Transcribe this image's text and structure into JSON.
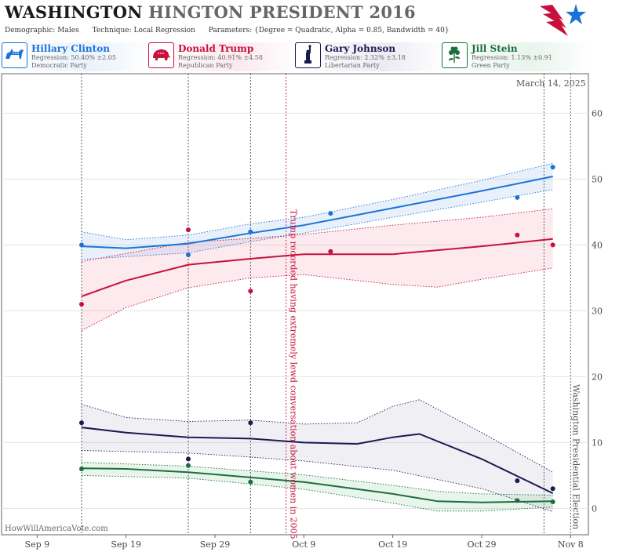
{
  "header": {
    "title_bold": "WASHINGTON",
    "title_rest": "HINGTON PRESIDENT 2016",
    "demographic": "Demographic: Males",
    "technique": "Technique: Local Regression",
    "parameters": "Parameters: {Degree = Quadratic, Alpha = 0.85, Bandwidth = 40}"
  },
  "candidates": [
    {
      "name": "Hillary Clinton",
      "regression": "Regression: 50.40% ±2.05",
      "party": "Democratic Party",
      "color": "#1a74d6",
      "icon": "donkey-icon"
    },
    {
      "name": "Donald Trump",
      "regression": "Regression: 40.91% ±4.58",
      "party": "Republican Party",
      "color": "#c8103c",
      "icon": "elephant-icon"
    },
    {
      "name": "Gary Johnson",
      "regression": "Regression: 2.32% ±3.18",
      "party": "Libertarian Party",
      "color": "#1b1a50",
      "icon": "statue-of-liberty-icon"
    },
    {
      "name": "Jill Stein",
      "regression": "Regression: 1.13% ±0.91",
      "party": "Green Party",
      "color": "#1b6e3c",
      "icon": "flower-icon"
    }
  ],
  "date_stamp": "March 14, 2025",
  "credit": "HowWillAmericaVote.com",
  "chart_data": {
    "type": "line",
    "x_tick_labels": [
      "Sep 9",
      "Sep 19",
      "Sep 29",
      "Oct 9",
      "Oct 19",
      "Oct 29",
      "Nov 8"
    ],
    "y_ticks": [
      0,
      10,
      20,
      30,
      40,
      50,
      60
    ],
    "xlim": [
      "2016-09-05",
      "2016-11-10"
    ],
    "ylim": [
      -4,
      66
    ],
    "grid": true,
    "poll_dates": [
      "2016-09-14",
      "2016-09-26",
      "2016-10-03",
      "2016-11-05"
    ],
    "events": [
      {
        "date": "2016-10-07",
        "label": "Trump recorded having extremely lewd conversation about women in 2005",
        "color": "#c8103c"
      },
      {
        "date": "2016-11-08",
        "label": "Washington Presidential Election",
        "color": "#555555"
      }
    ],
    "series": [
      {
        "name": "Hillary Clinton",
        "color": "#1a74d6",
        "band_color": "#4a90e2",
        "points": [
          [
            "2016-09-14",
            40.0
          ],
          [
            "2016-09-26",
            38.5
          ],
          [
            "2016-10-03",
            42.0
          ],
          [
            "2016-10-12",
            44.8
          ],
          [
            "2016-11-02",
            47.2
          ],
          [
            "2016-11-06",
            51.8
          ]
        ],
        "trend": [
          [
            "2016-09-14",
            39.8
          ],
          [
            "2016-09-19",
            39.5
          ],
          [
            "2016-09-26",
            40.2
          ],
          [
            "2016-10-03",
            41.8
          ],
          [
            "2016-10-09",
            43.0
          ],
          [
            "2016-10-19",
            45.6
          ],
          [
            "2016-10-29",
            48.2
          ],
          [
            "2016-11-06",
            50.4
          ]
        ],
        "lower": [
          [
            "2016-09-14",
            37.8
          ],
          [
            "2016-09-26",
            38.8
          ],
          [
            "2016-10-03",
            40.5
          ],
          [
            "2016-10-09",
            41.8
          ],
          [
            "2016-10-19",
            44.2
          ],
          [
            "2016-10-29",
            46.5
          ],
          [
            "2016-11-06",
            48.4
          ]
        ],
        "upper": [
          [
            "2016-09-14",
            42.0
          ],
          [
            "2016-09-19",
            40.8
          ],
          [
            "2016-09-26",
            41.5
          ],
          [
            "2016-10-03",
            43.2
          ],
          [
            "2016-10-09",
            44.2
          ],
          [
            "2016-10-19",
            46.9
          ],
          [
            "2016-10-29",
            49.8
          ],
          [
            "2016-11-06",
            52.4
          ]
        ]
      },
      {
        "name": "Donald Trump",
        "color": "#c8103c",
        "band_color": "#e8607c",
        "points": [
          [
            "2016-09-14",
            31.0
          ],
          [
            "2016-09-26",
            42.3
          ],
          [
            "2016-10-03",
            33.0
          ],
          [
            "2016-10-12",
            39.0
          ],
          [
            "2016-11-02",
            41.5
          ],
          [
            "2016-11-06",
            40.0
          ]
        ],
        "trend": [
          [
            "2016-09-14",
            32.2
          ],
          [
            "2016-09-19",
            34.6
          ],
          [
            "2016-09-26",
            37.0
          ],
          [
            "2016-10-03",
            37.9
          ],
          [
            "2016-10-09",
            38.6
          ],
          [
            "2016-10-19",
            38.6
          ],
          [
            "2016-10-29",
            39.8
          ],
          [
            "2016-11-06",
            40.9
          ]
        ],
        "lower": [
          [
            "2016-09-14",
            27.0
          ],
          [
            "2016-09-19",
            30.5
          ],
          [
            "2016-09-26",
            33.5
          ],
          [
            "2016-10-03",
            35.0
          ],
          [
            "2016-10-09",
            35.5
          ],
          [
            "2016-10-19",
            34.0
          ],
          [
            "2016-10-24",
            33.6
          ],
          [
            "2016-10-29",
            34.8
          ],
          [
            "2016-11-06",
            36.5
          ]
        ],
        "upper": [
          [
            "2016-09-14",
            37.5
          ],
          [
            "2016-09-19",
            38.7
          ],
          [
            "2016-09-26",
            40.4
          ],
          [
            "2016-10-03",
            41.0
          ],
          [
            "2016-10-09",
            41.6
          ],
          [
            "2016-10-19",
            43.0
          ],
          [
            "2016-10-29",
            44.2
          ],
          [
            "2016-11-06",
            45.5
          ]
        ]
      },
      {
        "name": "Gary Johnson",
        "color": "#1b1a50",
        "band_color": "#8a8aa8",
        "points": [
          [
            "2016-09-14",
            13.0
          ],
          [
            "2016-09-26",
            7.5
          ],
          [
            "2016-10-03",
            13.0
          ],
          [
            "2016-11-02",
            4.2
          ],
          [
            "2016-11-06",
            3.0
          ]
        ],
        "trend": [
          [
            "2016-09-14",
            12.3
          ],
          [
            "2016-09-19",
            11.5
          ],
          [
            "2016-09-26",
            10.8
          ],
          [
            "2016-10-03",
            10.6
          ],
          [
            "2016-10-09",
            10.0
          ],
          [
            "2016-10-15",
            9.8
          ],
          [
            "2016-10-19",
            10.8
          ],
          [
            "2016-10-22",
            11.3
          ],
          [
            "2016-10-29",
            7.5
          ],
          [
            "2016-11-06",
            2.3
          ]
        ],
        "lower": [
          [
            "2016-09-14",
            8.8
          ],
          [
            "2016-09-26",
            8.4
          ],
          [
            "2016-10-03",
            7.8
          ],
          [
            "2016-10-09",
            7.2
          ],
          [
            "2016-10-19",
            5.8
          ],
          [
            "2016-10-29",
            3.0
          ],
          [
            "2016-11-06",
            -0.5
          ]
        ],
        "upper": [
          [
            "2016-09-14",
            15.8
          ],
          [
            "2016-09-19",
            13.8
          ],
          [
            "2016-09-26",
            13.2
          ],
          [
            "2016-10-03",
            13.4
          ],
          [
            "2016-10-09",
            12.8
          ],
          [
            "2016-10-15",
            13.0
          ],
          [
            "2016-10-19",
            15.5
          ],
          [
            "2016-10-22",
            16.5
          ],
          [
            "2016-10-29",
            11.5
          ],
          [
            "2016-11-06",
            5.5
          ]
        ]
      },
      {
        "name": "Jill Stein",
        "color": "#1b6e3c",
        "band_color": "#4caf6e",
        "points": [
          [
            "2016-09-14",
            6.0
          ],
          [
            "2016-09-26",
            6.5
          ],
          [
            "2016-10-03",
            4.0
          ],
          [
            "2016-11-02",
            1.2
          ],
          [
            "2016-11-06",
            1.0
          ]
        ],
        "trend": [
          [
            "2016-09-14",
            6.1
          ],
          [
            "2016-09-19",
            6.0
          ],
          [
            "2016-09-26",
            5.5
          ],
          [
            "2016-10-03",
            4.7
          ],
          [
            "2016-10-09",
            4.0
          ],
          [
            "2016-10-19",
            2.2
          ],
          [
            "2016-10-24",
            1.1
          ],
          [
            "2016-10-29",
            0.9
          ],
          [
            "2016-11-06",
            1.1
          ]
        ],
        "lower": [
          [
            "2016-09-14",
            5.0
          ],
          [
            "2016-09-26",
            4.6
          ],
          [
            "2016-10-03",
            3.7
          ],
          [
            "2016-10-09",
            2.9
          ],
          [
            "2016-10-19",
            0.8
          ],
          [
            "2016-10-24",
            -0.4
          ],
          [
            "2016-10-29",
            -0.4
          ],
          [
            "2016-11-06",
            0.2
          ]
        ],
        "upper": [
          [
            "2016-09-14",
            7.0
          ],
          [
            "2016-09-26",
            6.4
          ],
          [
            "2016-10-03",
            5.7
          ],
          [
            "2016-10-09",
            5.1
          ],
          [
            "2016-10-19",
            3.5
          ],
          [
            "2016-10-24",
            2.6
          ],
          [
            "2016-10-29",
            2.2
          ],
          [
            "2016-11-06",
            2.0
          ]
        ]
      }
    ]
  }
}
